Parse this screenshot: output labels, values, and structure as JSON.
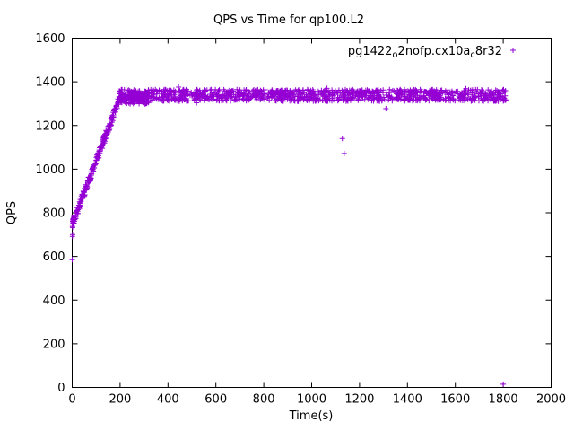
{
  "chart_data": {
    "type": "scatter",
    "title": "QPS vs Time for qp100.L2",
    "xlabel": "Time(s)",
    "ylabel": "QPS",
    "xlim": [
      0,
      2000
    ],
    "ylim": [
      0,
      1600
    ],
    "x_ticks": [
      0,
      200,
      400,
      600,
      800,
      1000,
      1200,
      1400,
      1600,
      1800,
      2000
    ],
    "y_ticks": [
      0,
      200,
      400,
      600,
      800,
      1000,
      1200,
      1400,
      1600
    ],
    "grid": false,
    "legend": {
      "position": "top-right",
      "label_plain": "pg1422_o2nofp.cx10a_c8r32",
      "label_parts": [
        {
          "text": "pg1422",
          "sub": false
        },
        {
          "text": "o",
          "sub": true
        },
        {
          "text": "2nofp.cx10a",
          "sub": false
        },
        {
          "text": "c",
          "sub": true
        },
        {
          "text": "8r32",
          "sub": false
        }
      ]
    },
    "series": [
      {
        "name": "pg1422_o2nofp.cx10a_c8r32",
        "color": "#9400D3",
        "marker": "plus",
        "start_cluster": [
          [
            0,
            585
          ],
          [
            0,
            748
          ],
          [
            1,
            692
          ],
          [
            1,
            738
          ],
          [
            2,
            700
          ],
          [
            2,
            760
          ],
          [
            3,
            752
          ],
          [
            3,
            770
          ],
          [
            4,
            768
          ],
          [
            5,
            775
          ],
          [
            6,
            780
          ],
          [
            8,
            790
          ]
        ],
        "ramp": {
          "x_start": 2,
          "x_end": 196,
          "y_start": 752,
          "y_end": 1318,
          "count": 160,
          "jitter": 20
        },
        "early_plateau": {
          "x_start": 196,
          "x_end": 320,
          "mean": 1322,
          "amplitude": 24,
          "count": 130
        },
        "plateau": {
          "x_start": 196,
          "x_end": 1812,
          "mean": 1338,
          "amplitude": 27,
          "count": 1250
        },
        "outliers": [
          [
            1128,
            1140
          ],
          [
            1136,
            1072
          ],
          [
            1310,
            1277
          ],
          [
            1800,
            15
          ]
        ]
      }
    ]
  }
}
